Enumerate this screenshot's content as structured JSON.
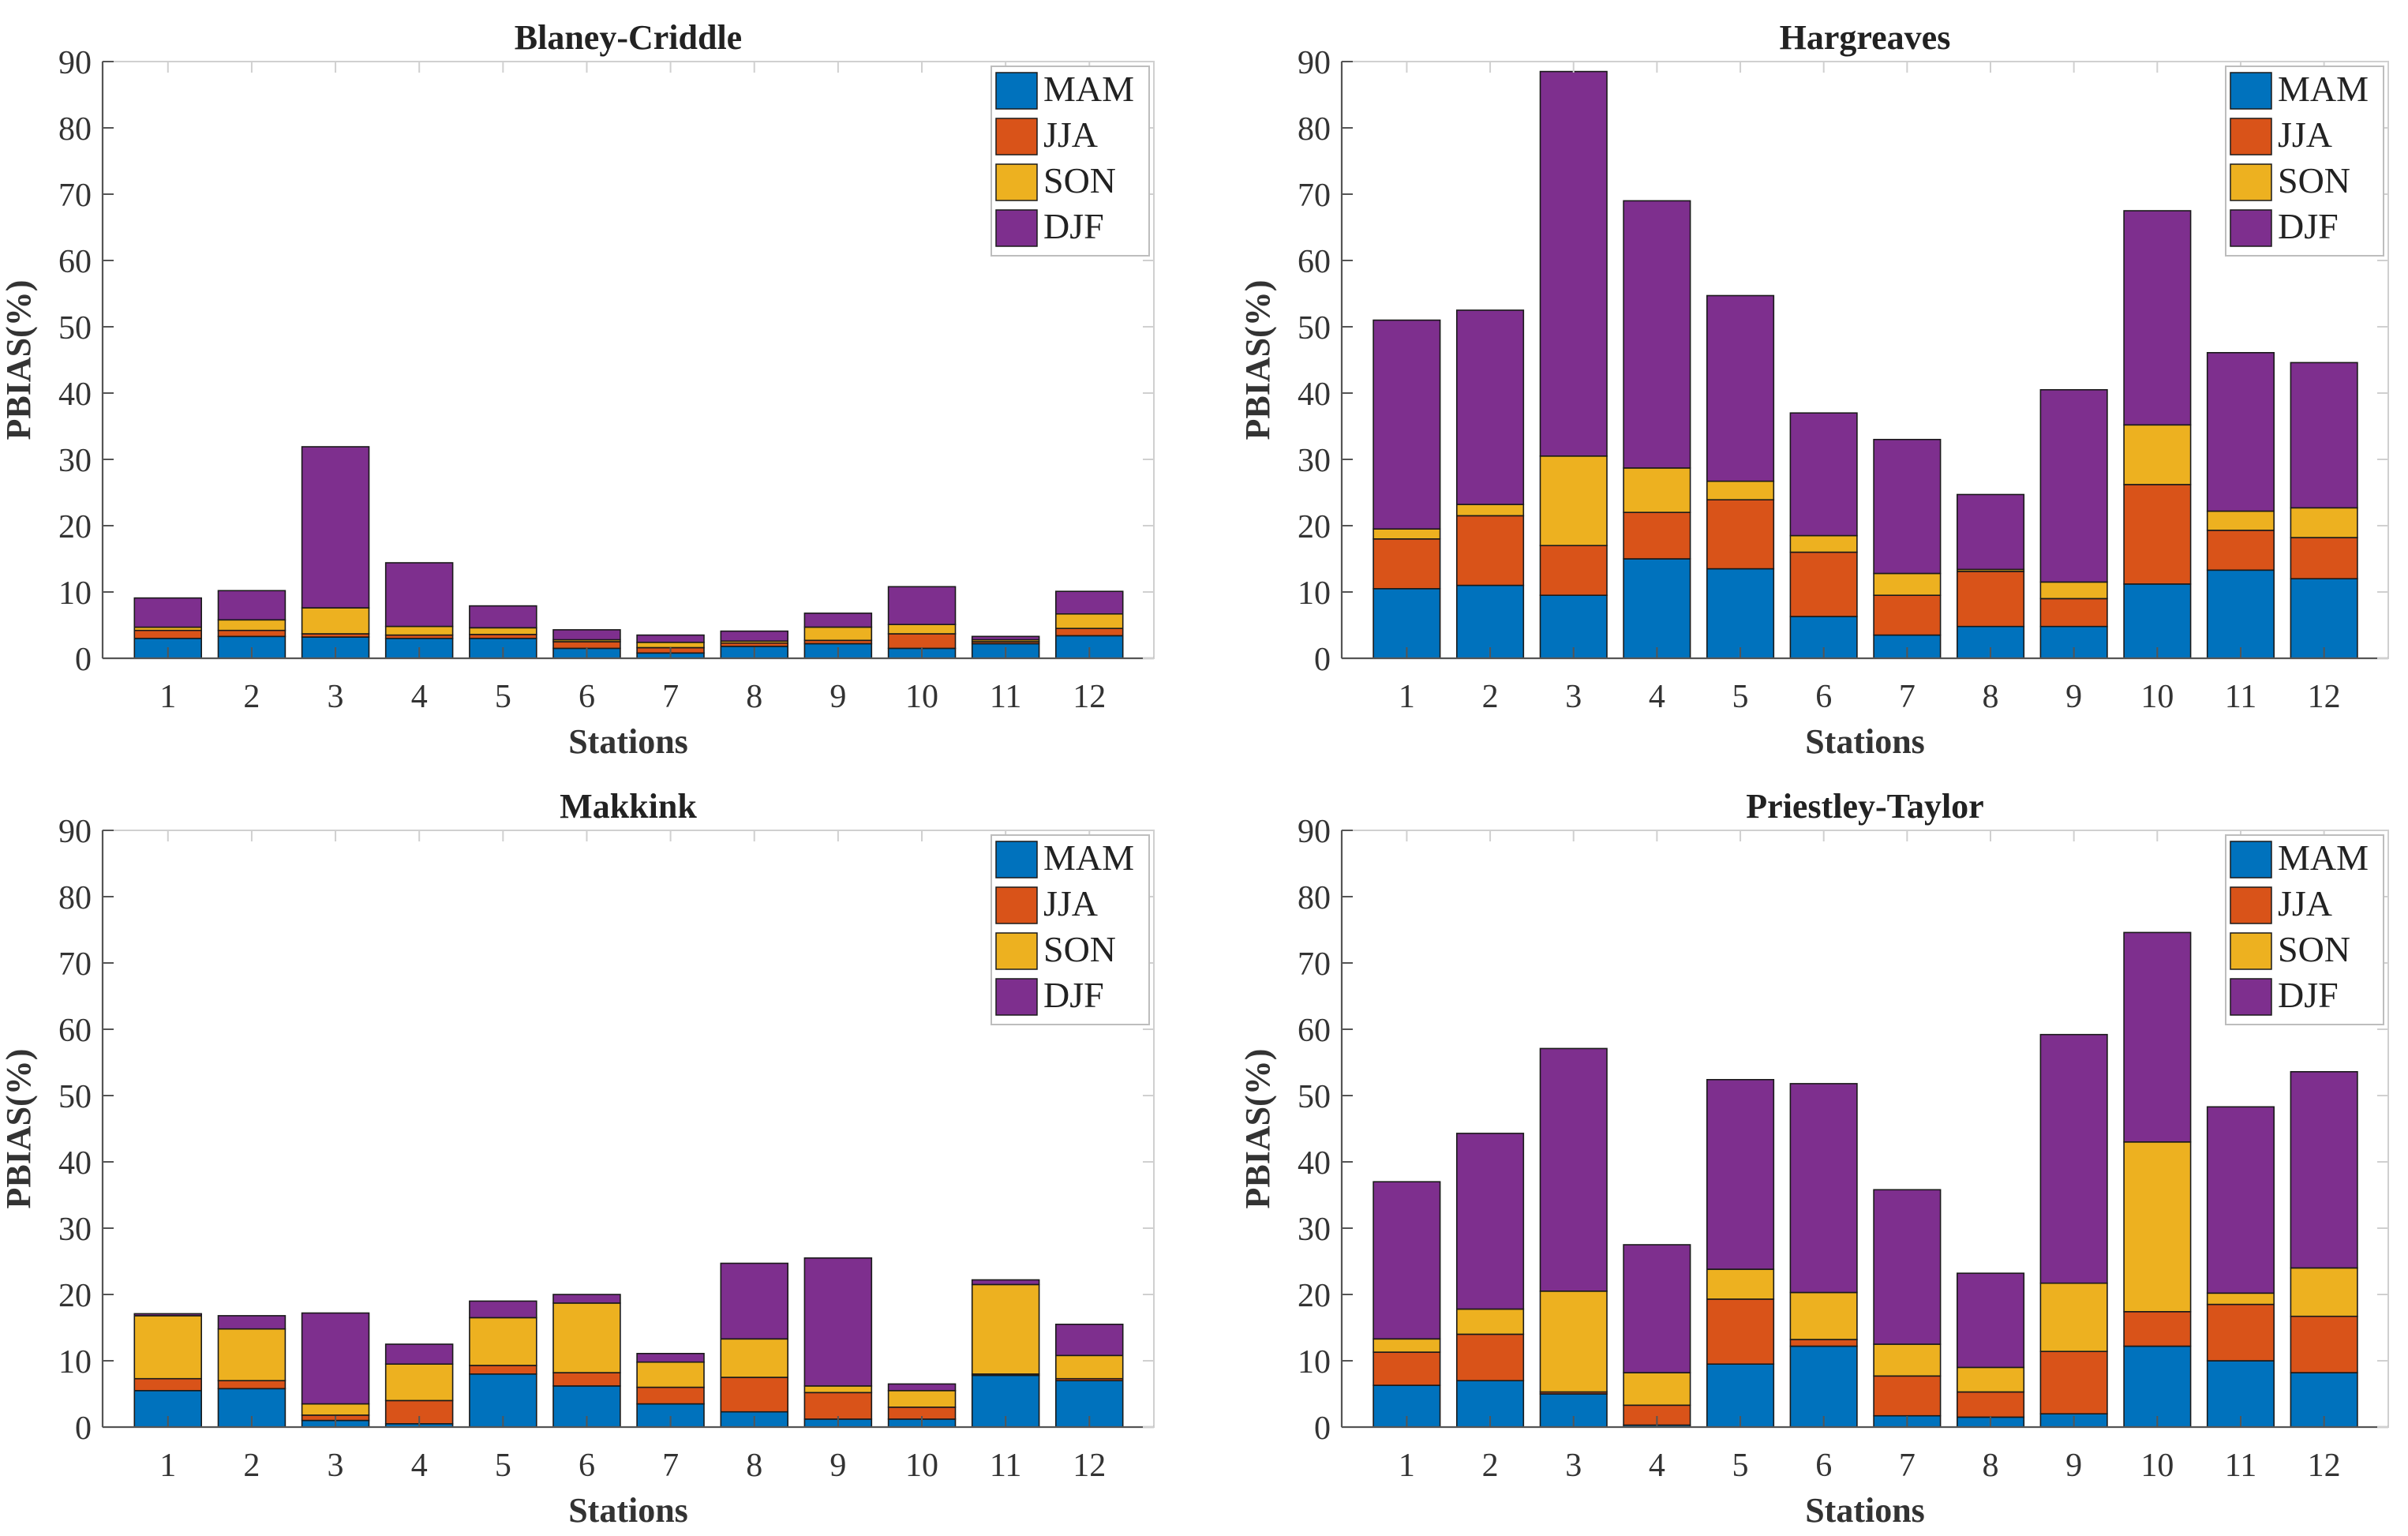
{
  "chart_data": [
    {
      "type": "bar",
      "stacked": true,
      "title": "Blaney-Criddle",
      "xlabel": "Stations",
      "ylabel": "PBIAS(%)",
      "ylim": [
        0,
        90
      ],
      "yticks": [
        0,
        10,
        20,
        30,
        40,
        50,
        60,
        70,
        80,
        90
      ],
      "categories": [
        "1",
        "2",
        "3",
        "4",
        "5",
        "6",
        "7",
        "8",
        "9",
        "10",
        "11",
        "12"
      ],
      "legend_position": "top-right",
      "series": [
        {
          "name": "MAM",
          "color": "#0072BD",
          "values": [
            3.0,
            3.3,
            3.2,
            3.0,
            3.0,
            1.5,
            0.8,
            1.8,
            2.2,
            1.5,
            2.2,
            3.4
          ]
        },
        {
          "name": "JJA",
          "color": "#D95319",
          "values": [
            1.2,
            0.9,
            0.5,
            0.5,
            0.6,
            1.0,
            0.8,
            0.5,
            0.5,
            2.2,
            0.3,
            1.1
          ]
        },
        {
          "name": "SON",
          "color": "#EDB120",
          "values": [
            0.5,
            1.6,
            3.9,
            1.3,
            1.0,
            0.3,
            0.8,
            0.3,
            2.0,
            1.4,
            0.3,
            2.2
          ]
        },
        {
          "name": "DJF",
          "color": "#7E2F8E",
          "values": [
            4.4,
            4.4,
            24.3,
            9.6,
            3.3,
            1.5,
            1.1,
            1.5,
            2.1,
            5.7,
            0.5,
            3.4
          ]
        }
      ]
    },
    {
      "type": "bar",
      "stacked": true,
      "title": "Hargreaves",
      "xlabel": "Stations",
      "ylabel": "PBIAS(%)",
      "ylim": [
        0,
        90
      ],
      "yticks": [
        0,
        10,
        20,
        30,
        40,
        50,
        60,
        70,
        80,
        90
      ],
      "categories": [
        "1",
        "2",
        "3",
        "4",
        "5",
        "6",
        "7",
        "8",
        "9",
        "10",
        "11",
        "12"
      ],
      "legend_position": "top-right",
      "series": [
        {
          "name": "MAM",
          "color": "#0072BD",
          "values": [
            10.5,
            11.0,
            9.5,
            15.0,
            13.5,
            6.3,
            3.5,
            4.8,
            4.8,
            11.2,
            13.3,
            12.0
          ]
        },
        {
          "name": "JJA",
          "color": "#D95319",
          "values": [
            7.5,
            10.5,
            7.5,
            7.0,
            10.4,
            9.7,
            6.0,
            8.3,
            4.2,
            15.0,
            6.0,
            6.2
          ]
        },
        {
          "name": "SON",
          "color": "#EDB120",
          "values": [
            1.5,
            1.7,
            13.5,
            6.7,
            2.8,
            2.5,
            3.3,
            0.3,
            2.5,
            9.0,
            2.9,
            4.5
          ]
        },
        {
          "name": "DJF",
          "color": "#7E2F8E",
          "values": [
            31.5,
            29.3,
            58.0,
            40.3,
            28.0,
            18.5,
            20.2,
            11.3,
            29.0,
            32.3,
            23.9,
            21.9
          ]
        }
      ]
    },
    {
      "type": "bar",
      "stacked": true,
      "title": "Makkink",
      "xlabel": "Stations",
      "ylabel": "PBIAS(%)",
      "ylim": [
        0,
        90
      ],
      "yticks": [
        0,
        10,
        20,
        30,
        40,
        50,
        60,
        70,
        80,
        90
      ],
      "categories": [
        "1",
        "2",
        "3",
        "4",
        "5",
        "6",
        "7",
        "8",
        "9",
        "10",
        "11",
        "12"
      ],
      "legend_position": "top-right",
      "series": [
        {
          "name": "MAM",
          "color": "#0072BD",
          "values": [
            5.5,
            5.8,
            1.0,
            0.5,
            8.0,
            6.2,
            3.5,
            2.3,
            1.2,
            1.2,
            7.8,
            7.0
          ]
        },
        {
          "name": "JJA",
          "color": "#D95319",
          "values": [
            1.8,
            1.2,
            0.8,
            3.5,
            1.3,
            2.0,
            2.5,
            5.2,
            4.0,
            1.8,
            0.2,
            0.3
          ]
        },
        {
          "name": "SON",
          "color": "#EDB120",
          "values": [
            9.5,
            7.8,
            1.7,
            5.5,
            7.2,
            10.5,
            3.8,
            5.8,
            1.0,
            2.5,
            13.5,
            3.5
          ]
        },
        {
          "name": "DJF",
          "color": "#7E2F8E",
          "values": [
            0.3,
            2.0,
            13.7,
            3.0,
            2.5,
            1.3,
            1.3,
            11.4,
            19.3,
            1.0,
            0.7,
            4.7
          ]
        }
      ]
    },
    {
      "type": "bar",
      "stacked": true,
      "title": "Priestley-Taylor",
      "xlabel": "Stations",
      "ylabel": "PBIAS(%)",
      "ylim": [
        0,
        90
      ],
      "yticks": [
        0,
        10,
        20,
        30,
        40,
        50,
        60,
        70,
        80,
        90
      ],
      "categories": [
        "1",
        "2",
        "3",
        "4",
        "5",
        "6",
        "7",
        "8",
        "9",
        "10",
        "11",
        "12"
      ],
      "legend_position": "top-right",
      "series": [
        {
          "name": "MAM",
          "color": "#0072BD",
          "values": [
            6.3,
            7.0,
            5.0,
            0.3,
            9.5,
            12.2,
            1.7,
            1.5,
            2.0,
            12.2,
            10.0,
            8.2
          ]
        },
        {
          "name": "JJA",
          "color": "#D95319",
          "values": [
            5.0,
            7.0,
            0.3,
            3.0,
            9.8,
            1.0,
            6.0,
            3.8,
            9.4,
            5.2,
            8.5,
            8.5
          ]
        },
        {
          "name": "SON",
          "color": "#EDB120",
          "values": [
            2.0,
            3.8,
            15.2,
            4.9,
            4.5,
            7.1,
            4.8,
            3.7,
            10.3,
            25.6,
            1.7,
            7.3
          ]
        },
        {
          "name": "DJF",
          "color": "#7E2F8E",
          "values": [
            23.7,
            26.5,
            36.6,
            19.3,
            28.6,
            31.5,
            23.3,
            14.2,
            37.5,
            31.6,
            28.1,
            29.6
          ]
        }
      ]
    }
  ]
}
